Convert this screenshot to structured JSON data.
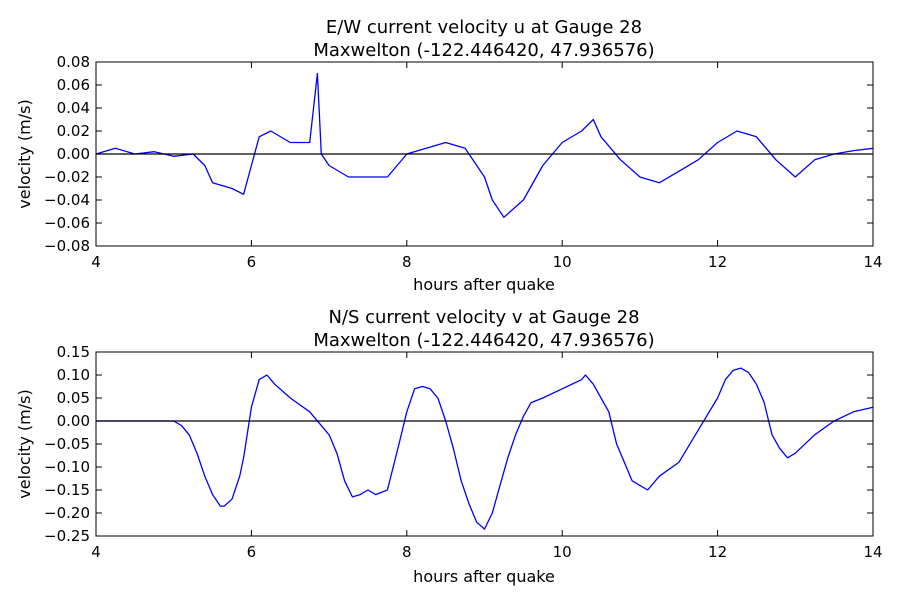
{
  "chart_data": [
    {
      "type": "line",
      "title": "E/W current velocity u at Gauge 28",
      "subtitle": "Maxwelton  (-122.446420, 47.936576)",
      "xlabel": "hours after quake",
      "ylabel": "velocity (m/s)",
      "xlim": [
        4,
        14
      ],
      "ylim": [
        -0.08,
        0.08
      ],
      "xticks": [
        "4",
        "6",
        "8",
        "10",
        "12",
        "14"
      ],
      "yticks": [
        "0.08",
        "0.06",
        "0.04",
        "0.02",
        "0.00",
        "−0.02",
        "−0.04",
        "−0.06",
        "−0.08"
      ],
      "grid": false,
      "line_color": "#0000ff",
      "zero_line_color": "#000000",
      "series": [
        {
          "x": [
            4.0,
            4.25,
            4.5,
            4.75,
            5.0,
            5.25,
            5.4,
            5.5,
            5.75,
            5.9,
            6.0,
            6.1,
            6.25,
            6.5,
            6.75,
            6.85,
            6.9,
            7.0,
            7.25,
            7.5,
            7.75,
            8.0,
            8.25,
            8.5,
            8.75,
            9.0,
            9.1,
            9.25,
            9.5,
            9.75,
            10.0,
            10.25,
            10.4,
            10.5,
            10.75,
            11.0,
            11.25,
            11.5,
            11.75,
            12.0,
            12.25,
            12.5,
            12.75,
            13.0,
            13.25,
            13.5,
            13.75,
            14.0
          ],
          "y": [
            0.0,
            0.005,
            0.0,
            0.002,
            -0.002,
            0.0,
            -0.01,
            -0.025,
            -0.03,
            -0.035,
            -0.01,
            0.015,
            0.02,
            0.01,
            0.01,
            0.07,
            0.0,
            -0.01,
            -0.02,
            -0.02,
            -0.02,
            0.0,
            0.005,
            0.01,
            0.005,
            -0.02,
            -0.04,
            -0.055,
            -0.04,
            -0.01,
            0.01,
            0.02,
            0.03,
            0.015,
            -0.005,
            -0.02,
            -0.025,
            -0.015,
            -0.005,
            0.01,
            0.02,
            0.015,
            -0.005,
            -0.02,
            -0.005,
            0.0,
            0.003,
            0.005
          ]
        }
      ]
    },
    {
      "type": "line",
      "title": "N/S current velocity v at Gauge 28",
      "subtitle": "Maxwelton  (-122.446420, 47.936576)",
      "xlabel": "hours after quake",
      "ylabel": "velocity (m/s)",
      "xlim": [
        4,
        14
      ],
      "ylim": [
        -0.25,
        0.15
      ],
      "xticks": [
        "4",
        "6",
        "8",
        "10",
        "12",
        "14"
      ],
      "yticks": [
        "0.15",
        "0.10",
        "0.05",
        "0.00",
        "−0.05",
        "−0.10",
        "−0.15",
        "−0.20",
        "−0.25"
      ],
      "grid": false,
      "line_color": "#0000ff",
      "zero_line_color": "#000000",
      "series": [
        {
          "x": [
            4.0,
            4.25,
            4.5,
            4.75,
            5.0,
            5.1,
            5.2,
            5.3,
            5.4,
            5.5,
            5.6,
            5.65,
            5.75,
            5.85,
            5.9,
            6.0,
            6.1,
            6.2,
            6.3,
            6.5,
            6.75,
            7.0,
            7.1,
            7.2,
            7.3,
            7.4,
            7.5,
            7.6,
            7.75,
            7.9,
            8.0,
            8.1,
            8.2,
            8.3,
            8.4,
            8.5,
            8.6,
            8.7,
            8.8,
            8.9,
            9.0,
            9.1,
            9.2,
            9.3,
            9.4,
            9.5,
            9.6,
            9.75,
            10.0,
            10.25,
            10.3,
            10.4,
            10.5,
            10.6,
            10.7,
            10.8,
            10.9,
            11.0,
            11.1,
            11.25,
            11.5,
            11.75,
            12.0,
            12.1,
            12.2,
            12.3,
            12.4,
            12.5,
            12.6,
            12.7,
            12.8,
            12.9,
            13.0,
            13.25,
            13.5,
            13.75,
            14.0
          ],
          "y": [
            0.0,
            0.0,
            0.0,
            0.0,
            0.0,
            -0.01,
            -0.03,
            -0.07,
            -0.12,
            -0.16,
            -0.185,
            -0.185,
            -0.17,
            -0.12,
            -0.08,
            0.03,
            0.09,
            0.1,
            0.08,
            0.05,
            0.02,
            -0.03,
            -0.07,
            -0.13,
            -0.165,
            -0.16,
            -0.15,
            -0.16,
            -0.15,
            -0.05,
            0.02,
            0.07,
            0.075,
            0.07,
            0.05,
            0.0,
            -0.06,
            -0.13,
            -0.18,
            -0.22,
            -0.235,
            -0.2,
            -0.14,
            -0.08,
            -0.03,
            0.01,
            0.04,
            0.05,
            0.07,
            0.09,
            0.1,
            0.08,
            0.05,
            0.02,
            -0.05,
            -0.09,
            -0.13,
            -0.14,
            -0.15,
            -0.12,
            -0.09,
            -0.02,
            0.05,
            0.09,
            0.11,
            0.115,
            0.105,
            0.08,
            0.04,
            -0.03,
            -0.06,
            -0.08,
            -0.07,
            -0.03,
            0.0,
            0.02,
            0.03
          ]
        }
      ]
    }
  ]
}
